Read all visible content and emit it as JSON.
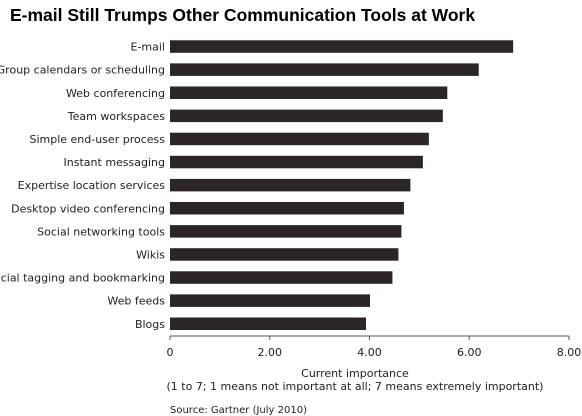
{
  "page": {
    "title": "E-mail Still Trumps Other Communication Tools at Work"
  },
  "chart_data": {
    "type": "bar",
    "orientation": "horizontal",
    "categories": [
      "E-mail",
      "Group calendars or scheduling",
      "Web conferencing",
      "Team workspaces",
      "Simple end-user process",
      "Instant messaging",
      "Expertise location services",
      "Desktop video conferencing",
      "Social networking tools",
      "Wikis",
      "Social tagging and bookmarking",
      "Web feeds",
      "Blogs"
    ],
    "values": [
      6.88,
      6.19,
      5.56,
      5.47,
      5.19,
      5.07,
      4.82,
      4.69,
      4.64,
      4.58,
      4.46,
      4.01,
      3.93
    ],
    "title": "E-mail Still Trumps Other Communication Tools at Work",
    "xlabel": "Current importance",
    "xlabel_note": "(1 to 7; 1 means not important at all; 7 means extremely important)",
    "ylabel": "",
    "xlim": [
      0,
      8
    ],
    "xticks": [
      0,
      2,
      4,
      6,
      8
    ],
    "xtick_labels": [
      "0",
      "2.00",
      "4.00",
      "6.00",
      "8.00"
    ],
    "grid": false,
    "legend": "none",
    "bar_color": "#2b2527",
    "source": "Source: Gartner (July 2010)"
  }
}
